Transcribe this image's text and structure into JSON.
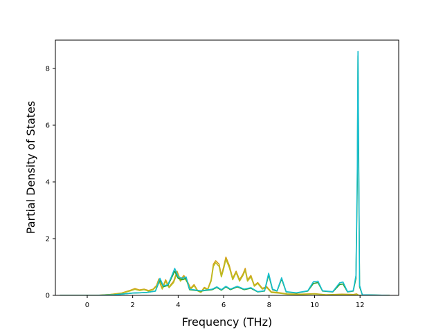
{
  "chart_data": {
    "type": "line",
    "title": "",
    "xlabel": "Frequency (THz)",
    "ylabel": "Partial Density of States",
    "xlim": [
      -1.4,
      13.7
    ],
    "ylim": [
      0,
      9.0
    ],
    "x_ticks": [
      0,
      2,
      4,
      6,
      8,
      10,
      12
    ],
    "y_ticks": [
      0,
      2,
      4,
      6,
      8
    ],
    "grid": false,
    "legend": "none",
    "series": [
      {
        "color": "#d4a017",
        "points": [
          [
            -1.2,
            0
          ],
          [
            0.4,
            0
          ],
          [
            1.0,
            0.03
          ],
          [
            1.5,
            0.08
          ],
          [
            1.9,
            0.18
          ],
          [
            2.1,
            0.24
          ],
          [
            2.3,
            0.19
          ],
          [
            2.5,
            0.22
          ],
          [
            2.7,
            0.17
          ],
          [
            2.9,
            0.22
          ],
          [
            3.05,
            0.35
          ],
          [
            3.15,
            0.58
          ],
          [
            3.3,
            0.25
          ],
          [
            3.45,
            0.55
          ],
          [
            3.6,
            0.3
          ],
          [
            3.8,
            0.5
          ],
          [
            3.95,
            0.85
          ],
          [
            4.1,
            0.55
          ],
          [
            4.25,
            0.7
          ],
          [
            4.4,
            0.5
          ],
          [
            4.55,
            0.25
          ],
          [
            4.7,
            0.38
          ],
          [
            4.85,
            0.18
          ],
          [
            5.0,
            0.12
          ],
          [
            5.15,
            0.28
          ],
          [
            5.3,
            0.22
          ],
          [
            5.45,
            0.55
          ],
          [
            5.55,
            1.1
          ],
          [
            5.65,
            1.22
          ],
          [
            5.8,
            1.1
          ],
          [
            5.9,
            0.7
          ],
          [
            6.0,
            1.0
          ],
          [
            6.1,
            1.35
          ],
          [
            6.25,
            1.05
          ],
          [
            6.4,
            0.6
          ],
          [
            6.55,
            0.85
          ],
          [
            6.7,
            0.55
          ],
          [
            6.85,
            0.75
          ],
          [
            6.95,
            0.95
          ],
          [
            7.05,
            0.55
          ],
          [
            7.2,
            0.7
          ],
          [
            7.35,
            0.35
          ],
          [
            7.5,
            0.45
          ],
          [
            7.7,
            0.25
          ],
          [
            7.9,
            0.3
          ],
          [
            8.1,
            0.12
          ],
          [
            8.4,
            0.1
          ],
          [
            8.8,
            0.05
          ],
          [
            9.4,
            0.04
          ],
          [
            10.0,
            0.06
          ],
          [
            10.5,
            0.02
          ],
          [
            11.2,
            0.04
          ],
          [
            11.7,
            0.03
          ],
          [
            11.85,
            0.05
          ],
          [
            11.95,
            0.0
          ],
          [
            13.3,
            0
          ]
        ]
      },
      {
        "color": "#bcbd22",
        "points": [
          [
            -1.2,
            0
          ],
          [
            0.4,
            0
          ],
          [
            1.0,
            0.03
          ],
          [
            1.5,
            0.07
          ],
          [
            1.9,
            0.16
          ],
          [
            2.1,
            0.21
          ],
          [
            2.3,
            0.17
          ],
          [
            2.5,
            0.2
          ],
          [
            2.7,
            0.15
          ],
          [
            2.9,
            0.2
          ],
          [
            3.05,
            0.32
          ],
          [
            3.15,
            0.52
          ],
          [
            3.3,
            0.22
          ],
          [
            3.45,
            0.5
          ],
          [
            3.6,
            0.27
          ],
          [
            3.8,
            0.45
          ],
          [
            3.95,
            0.78
          ],
          [
            4.1,
            0.5
          ],
          [
            4.25,
            0.64
          ],
          [
            4.4,
            0.46
          ],
          [
            4.55,
            0.22
          ],
          [
            4.7,
            0.34
          ],
          [
            4.85,
            0.16
          ],
          [
            5.0,
            0.1
          ],
          [
            5.15,
            0.25
          ],
          [
            5.3,
            0.2
          ],
          [
            5.45,
            0.5
          ],
          [
            5.55,
            1.02
          ],
          [
            5.65,
            1.15
          ],
          [
            5.8,
            1.02
          ],
          [
            5.9,
            0.65
          ],
          [
            6.0,
            0.93
          ],
          [
            6.1,
            1.27
          ],
          [
            6.25,
            0.98
          ],
          [
            6.4,
            0.55
          ],
          [
            6.55,
            0.8
          ],
          [
            6.7,
            0.5
          ],
          [
            6.85,
            0.7
          ],
          [
            6.95,
            0.88
          ],
          [
            7.05,
            0.5
          ],
          [
            7.2,
            0.65
          ],
          [
            7.35,
            0.32
          ],
          [
            7.5,
            0.42
          ],
          [
            7.7,
            0.22
          ],
          [
            7.9,
            0.27
          ],
          [
            8.1,
            0.1
          ],
          [
            8.4,
            0.08
          ],
          [
            8.8,
            0.04
          ],
          [
            9.4,
            0.03
          ],
          [
            10.0,
            0.05
          ],
          [
            10.5,
            0.02
          ],
          [
            11.2,
            0.03
          ],
          [
            11.7,
            0.02
          ],
          [
            11.85,
            0.04
          ],
          [
            11.95,
            0.0
          ],
          [
            13.3,
            0
          ]
        ]
      },
      {
        "color": "#2ca02c",
        "points": [
          [
            -1.2,
            0
          ],
          [
            0.4,
            0
          ],
          [
            1.2,
            0.02
          ],
          [
            2.0,
            0.08
          ],
          [
            2.6,
            0.1
          ],
          [
            3.0,
            0.15
          ],
          [
            3.2,
            0.55
          ],
          [
            3.35,
            0.3
          ],
          [
            3.55,
            0.35
          ],
          [
            3.7,
            0.6
          ],
          [
            3.85,
            0.85
          ],
          [
            4.0,
            0.6
          ],
          [
            4.2,
            0.55
          ],
          [
            4.35,
            0.6
          ],
          [
            4.5,
            0.2
          ],
          [
            5.0,
            0.15
          ],
          [
            5.5,
            0.2
          ],
          [
            5.7,
            0.28
          ],
          [
            5.9,
            0.18
          ],
          [
            6.1,
            0.3
          ],
          [
            6.3,
            0.2
          ],
          [
            6.6,
            0.3
          ],
          [
            6.9,
            0.2
          ],
          [
            7.2,
            0.25
          ],
          [
            7.5,
            0.12
          ],
          [
            7.8,
            0.15
          ],
          [
            7.98,
            0.72
          ],
          [
            8.15,
            0.2
          ],
          [
            8.35,
            0.15
          ],
          [
            8.55,
            0.58
          ],
          [
            8.75,
            0.12
          ],
          [
            9.2,
            0.08
          ],
          [
            9.7,
            0.15
          ],
          [
            9.95,
            0.42
          ],
          [
            10.15,
            0.45
          ],
          [
            10.35,
            0.15
          ],
          [
            10.8,
            0.12
          ],
          [
            11.1,
            0.38
          ],
          [
            11.25,
            0.4
          ],
          [
            11.45,
            0.12
          ],
          [
            11.7,
            0.15
          ],
          [
            11.82,
            0.6
          ],
          [
            11.88,
            4.0
          ],
          [
            11.91,
            8.45
          ],
          [
            11.94,
            4.5
          ],
          [
            11.98,
            0.3
          ],
          [
            12.1,
            0.02
          ],
          [
            13.3,
            0
          ]
        ]
      },
      {
        "color": "#17becf",
        "points": [
          [
            -1.2,
            0
          ],
          [
            0.4,
            0
          ],
          [
            1.2,
            0.02
          ],
          [
            2.0,
            0.08
          ],
          [
            2.6,
            0.1
          ],
          [
            3.0,
            0.15
          ],
          [
            3.2,
            0.6
          ],
          [
            3.35,
            0.33
          ],
          [
            3.55,
            0.38
          ],
          [
            3.7,
            0.65
          ],
          [
            3.85,
            0.95
          ],
          [
            4.0,
            0.65
          ],
          [
            4.2,
            0.6
          ],
          [
            4.35,
            0.65
          ],
          [
            4.5,
            0.22
          ],
          [
            5.0,
            0.16
          ],
          [
            5.5,
            0.22
          ],
          [
            5.7,
            0.3
          ],
          [
            5.9,
            0.2
          ],
          [
            6.1,
            0.32
          ],
          [
            6.3,
            0.22
          ],
          [
            6.6,
            0.32
          ],
          [
            6.9,
            0.22
          ],
          [
            7.2,
            0.27
          ],
          [
            7.5,
            0.13
          ],
          [
            7.8,
            0.16
          ],
          [
            7.98,
            0.78
          ],
          [
            8.15,
            0.22
          ],
          [
            8.35,
            0.16
          ],
          [
            8.55,
            0.62
          ],
          [
            8.75,
            0.13
          ],
          [
            9.2,
            0.09
          ],
          [
            9.7,
            0.16
          ],
          [
            9.95,
            0.48
          ],
          [
            10.15,
            0.5
          ],
          [
            10.35,
            0.16
          ],
          [
            10.8,
            0.13
          ],
          [
            11.1,
            0.44
          ],
          [
            11.25,
            0.47
          ],
          [
            11.45,
            0.13
          ],
          [
            11.7,
            0.16
          ],
          [
            11.82,
            0.7
          ],
          [
            11.88,
            4.5
          ],
          [
            11.91,
            8.6
          ],
          [
            11.94,
            5.0
          ],
          [
            11.98,
            0.35
          ],
          [
            12.1,
            0.02
          ],
          [
            13.3,
            0
          ]
        ]
      }
    ]
  }
}
